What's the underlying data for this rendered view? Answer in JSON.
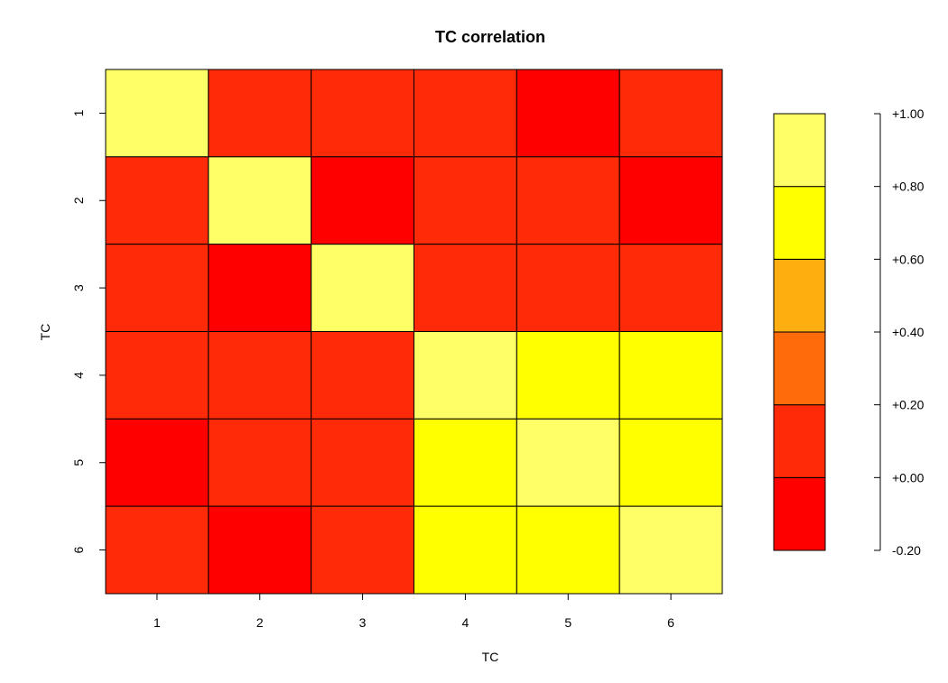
{
  "chart_data": {
    "type": "heatmap",
    "title": "TC correlation",
    "xlabel": "TC",
    "ylabel": "TC",
    "x_categories": [
      "1",
      "2",
      "3",
      "4",
      "5",
      "6"
    ],
    "y_categories": [
      "1",
      "2",
      "3",
      "4",
      "5",
      "6"
    ],
    "values": [
      [
        1.0,
        0.05,
        0.05,
        0.05,
        -0.05,
        0.05
      ],
      [
        0.05,
        1.0,
        -0.05,
        0.05,
        0.05,
        -0.05
      ],
      [
        0.05,
        -0.05,
        1.0,
        0.05,
        0.05,
        0.05
      ],
      [
        0.05,
        0.05,
        0.05,
        1.0,
        0.7,
        0.7
      ],
      [
        -0.05,
        0.05,
        0.05,
        0.7,
        1.0,
        0.7
      ],
      [
        0.05,
        -0.05,
        0.05,
        0.7,
        0.7,
        1.0
      ]
    ],
    "color_scale": {
      "breaks": [
        -0.2,
        0.0,
        0.2,
        0.4,
        0.6,
        0.8,
        1.0
      ],
      "colors": [
        "#FF0000",
        "#FF2A08",
        "#FF6A0A",
        "#FFAE10",
        "#FFFF00",
        "#FFFF66"
      ],
      "tick_labels": [
        "-0.20",
        "+0.00",
        "+0.20",
        "+0.40",
        "+0.60",
        "+0.80",
        "+1.00"
      ]
    },
    "grid": true,
    "legend": "right"
  }
}
